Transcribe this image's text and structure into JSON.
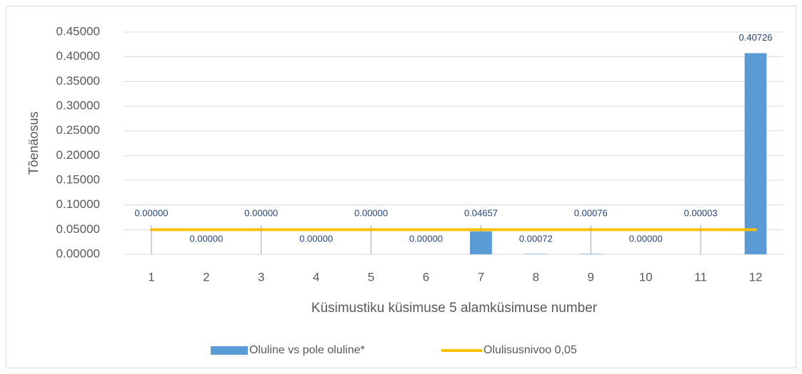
{
  "chart_data": {
    "type": "bar",
    "categories": [
      "1",
      "2",
      "3",
      "4",
      "5",
      "6",
      "7",
      "8",
      "9",
      "10",
      "11",
      "12"
    ],
    "series": [
      {
        "name": "Oluline vs pole oluline*",
        "color": "#5b9bd5",
        "type": "bar",
        "values": [
          0,
          0,
          0,
          0,
          0,
          0,
          0.04657,
          0.00072,
          0.00076,
          0,
          3e-05,
          0.40726
        ],
        "value_labels": [
          "0.00000",
          "0.00000",
          "0.00000",
          "0.00000",
          "0.00000",
          "0.00000",
          "0.04657",
          "0.00072",
          "0.00076",
          "0.00000",
          "0.00003",
          "0.40726"
        ]
      },
      {
        "name": "Olulisusnivoo 0,05",
        "color": "#ffc000",
        "type": "line",
        "values": [
          0.05,
          0.05,
          0.05,
          0.05,
          0.05,
          0.05,
          0.05,
          0.05,
          0.05,
          0.05,
          0.05,
          0.05
        ]
      }
    ],
    "x_label": "Küsimustiku küsimuse 5 alamküsimuse number",
    "y_label": "Tõenäosus",
    "ylim": [
      0,
      0.45
    ],
    "yticks": [
      {
        "value": 0,
        "label": "0.00000"
      },
      {
        "value": 0.05,
        "label": "0.05000"
      },
      {
        "value": 0.1,
        "label": "0.10000"
      },
      {
        "value": 0.15,
        "label": "0.15000"
      },
      {
        "value": 0.2,
        "label": "0.20000"
      },
      {
        "value": 0.25,
        "label": "0.25000"
      },
      {
        "value": 0.3,
        "label": "0.30000"
      },
      {
        "value": 0.35,
        "label": "0.35000"
      },
      {
        "value": 0.4,
        "label": "0.40000"
      },
      {
        "value": 0.45,
        "label": "0.45000"
      }
    ],
    "grid": true,
    "legend": "bottom"
  }
}
